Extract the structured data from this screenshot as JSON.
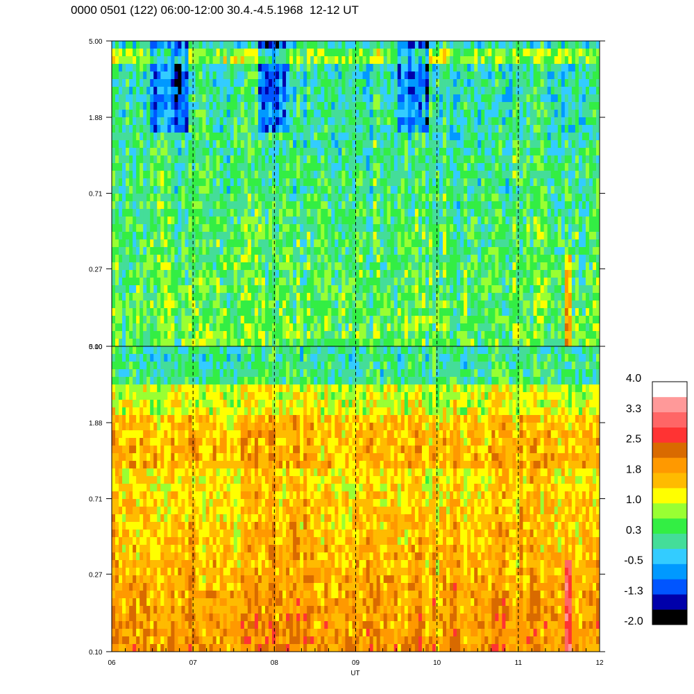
{
  "title": "0000 0501 (122) 06:00-12:00 30.4.-4.5.1968  12-12 UT",
  "chart_data": {
    "type": "heatmap",
    "title": "0000 0501 (122) 06:00-12:00 30.4.-4.5.1968  12-12 UT",
    "xlabel": "UT",
    "ylabel": "",
    "x_ticks": [
      "06",
      "07",
      "08",
      "09",
      "10",
      "11",
      "12"
    ],
    "xlim": [
      6,
      12
    ],
    "y_ticks": [
      "0.10",
      "0.27",
      "0.71",
      "1.88",
      "5.00"
    ],
    "y_tick_values": [
      0.1,
      0.27,
      0.71,
      1.88,
      5.0
    ],
    "ylim": [
      0.1,
      5.0
    ],
    "y_scale": "log",
    "grid": "dashed vertical lines at each hour",
    "panels": [
      {
        "position": "top",
        "dominant_levels": [
          0.3,
          0.7,
          1.0
        ],
        "notes": "mostly green/yellow, blue patches near top"
      },
      {
        "position": "bottom",
        "dominant_levels": [
          1.4,
          1.8,
          2.2
        ],
        "notes": "mostly orange/yellow, red streak near 11.6 UT"
      }
    ],
    "colorbar": {
      "labels": [
        "4.0",
        "3.3",
        "2.5",
        "1.8",
        "1.0",
        "0.3",
        "-0.5",
        "-1.3",
        "-2.0"
      ],
      "range": [
        -2.0,
        4.0
      ],
      "colors": [
        "#000000",
        "#0000aa",
        "#0055ff",
        "#0099ff",
        "#33ccff",
        "#44dd99",
        "#33ee44",
        "#99ff33",
        "#ffff00",
        "#ffbb00",
        "#ff9900",
        "#d96a00",
        "#ff3333",
        "#ff6666",
        "#ff9999",
        "#ffffff"
      ]
    }
  }
}
